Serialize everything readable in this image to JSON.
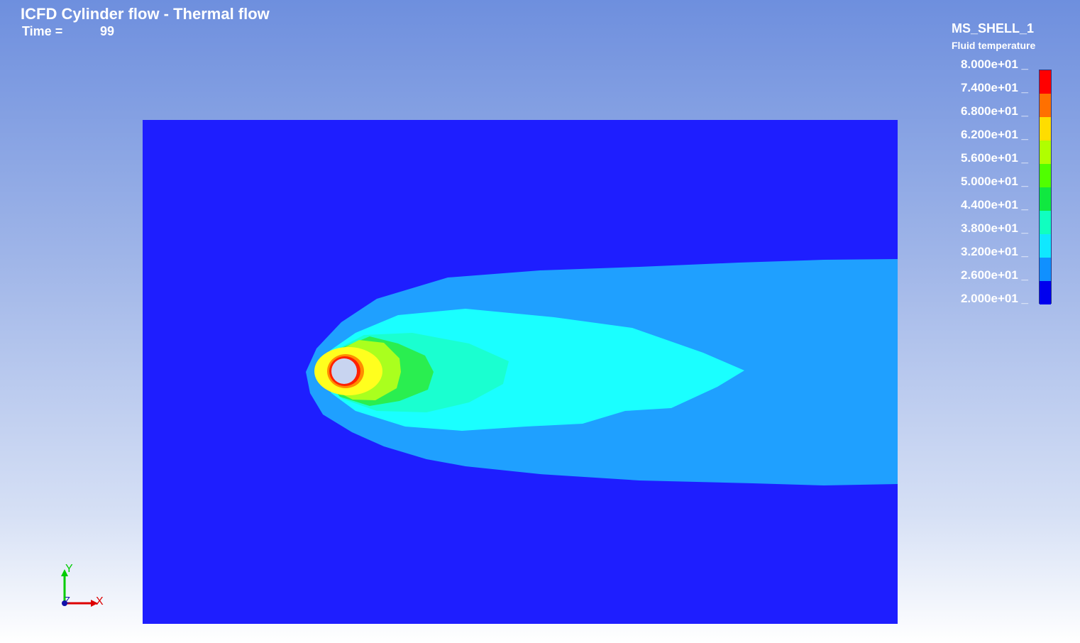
{
  "header": {
    "title": "ICFD Cylinder flow - Thermal flow",
    "time_label": "Time =",
    "time_value": "99"
  },
  "legend": {
    "part_name": "MS_SHELL_1",
    "quantity": "Fluid temperature",
    "labels": [
      "8.000e+01",
      "7.400e+01",
      "6.800e+01",
      "6.200e+01",
      "5.600e+01",
      "5.000e+01",
      "4.400e+01",
      "3.800e+01",
      "3.200e+01",
      "2.600e+01",
      "2.000e+01"
    ],
    "colors": [
      "#ff0000",
      "#ff7000",
      "#ffdd00",
      "#b0ff00",
      "#50ff00",
      "#10e840",
      "#10ffc0",
      "#10e8ff",
      "#1090ff",
      "#0000ee"
    ]
  },
  "plot": {
    "background_color": "#1e1eff",
    "band_colors": {
      "outer": "#1fa0ff",
      "cyan": "#1affff",
      "teal": "#1affd0",
      "green": "#2aee50",
      "lime": "#aaff1e",
      "yellow": "#ffff1e",
      "orange": "#ff8c00",
      "red": "#ff2000",
      "cylinder": "#c8d4f0"
    }
  },
  "axis_triad": {
    "x_label": "X",
    "y_label": "Y",
    "z_label": "Z"
  },
  "icons": {
    "axes": "axis-triad-icon"
  }
}
